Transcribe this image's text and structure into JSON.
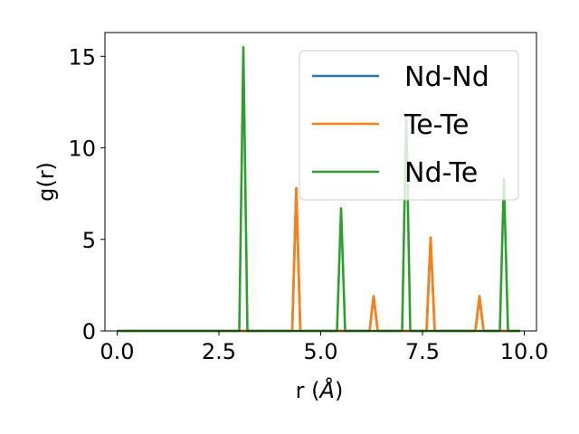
{
  "chart_data": {
    "type": "line",
    "xlabel_main": "r (",
    "xlabel_unit": "Å",
    "xlabel_close": ")",
    "ylabel": "g(r)",
    "xlim": [
      -0.3,
      10.3
    ],
    "ylim": [
      0,
      16.3
    ],
    "xticks": [
      0.0,
      2.5,
      5.0,
      7.5,
      10.0
    ],
    "xtick_labels": [
      "0.0",
      "2.5",
      "5.0",
      "7.5",
      "10.0"
    ],
    "yticks": [
      0,
      5,
      10,
      15
    ],
    "ytick_labels": [
      "0",
      "5",
      "10",
      "15"
    ],
    "grid": false,
    "legend_position": "top-right",
    "x_range": [
      0.0,
      9.9
    ],
    "series": [
      {
        "name": "Nd-Nd",
        "color": "#1f77b4",
        "peaks": [
          [
            4.4,
            7.8
          ],
          [
            6.3,
            1.9
          ],
          [
            7.7,
            5.1
          ],
          [
            8.9,
            1.9
          ]
        ]
      },
      {
        "name": "Te-Te",
        "color": "#ff7f0e",
        "peaks": [
          [
            4.4,
            7.8
          ],
          [
            6.3,
            1.9
          ],
          [
            7.7,
            5.1
          ],
          [
            8.9,
            1.9
          ]
        ]
      },
      {
        "name": "Nd-Te",
        "color": "#2ca02c",
        "peaks": [
          [
            3.1,
            15.5
          ],
          [
            5.5,
            6.7
          ],
          [
            7.1,
            11.8
          ],
          [
            9.5,
            8.3
          ]
        ]
      }
    ]
  }
}
